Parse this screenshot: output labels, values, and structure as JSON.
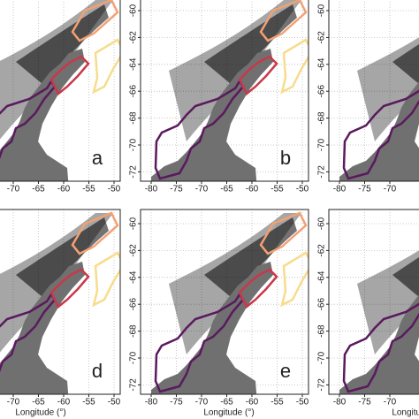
{
  "x_axis_title": "Longitude (°)",
  "panels": [
    {
      "label": "a",
      "lon_ticks": [
        -70,
        -65,
        -60,
        -55,
        -50
      ]
    },
    {
      "label": "b",
      "lon_ticks": [
        -80,
        -75,
        -70,
        -65,
        -60,
        -55,
        -50
      ],
      "lat_ticks": [
        -60,
        -62,
        -64,
        -66,
        -68,
        -70,
        -72
      ]
    },
    {
      "lon_ticks": [
        -80,
        -75,
        -70
      ],
      "lat_ticks": [
        -60,
        -62,
        -64,
        -66,
        -68,
        -70,
        -72
      ]
    },
    {
      "label": "d",
      "lon_ticks": [
        -70,
        -65,
        -60,
        -55,
        -50
      ]
    },
    {
      "label": "e",
      "lon_ticks": [
        -80,
        -75,
        -70,
        -65,
        -60,
        -55,
        -50
      ],
      "lat_ticks": [
        -60,
        -62,
        -64,
        -66,
        -68,
        -70,
        -72
      ]
    },
    {
      "lon_ticks": [
        -80,
        -75,
        -70
      ],
      "lat_ticks": [
        -60,
        -62,
        -64,
        -66,
        -68,
        -70,
        -72
      ]
    }
  ]
}
